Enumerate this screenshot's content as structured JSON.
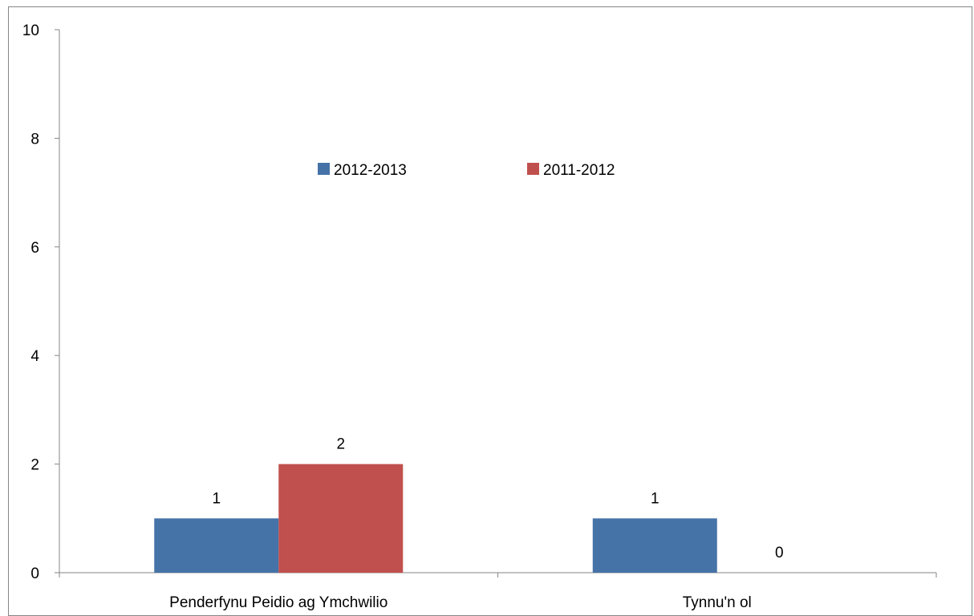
{
  "chart_data": {
    "type": "bar",
    "categories": [
      "Penderfynu Peidio ag Ymchwilio",
      "Tynnu'n ol"
    ],
    "series": [
      {
        "name": "2012-2013",
        "values": [
          1,
          1
        ],
        "color": "#4572A7"
      },
      {
        "name": "2011-2012",
        "values": [
          2,
          0
        ],
        "color": "#C0504D"
      }
    ],
    "y_ticks": [
      "0",
      "2",
      "4",
      "6",
      "8",
      "10"
    ],
    "ylim": [
      0,
      10
    ],
    "data_labels": [
      [
        "1",
        "1"
      ],
      [
        "2",
        "0"
      ]
    ],
    "legend_position": "top-center",
    "grid": false,
    "title": "",
    "xlabel": "",
    "ylabel": ""
  }
}
